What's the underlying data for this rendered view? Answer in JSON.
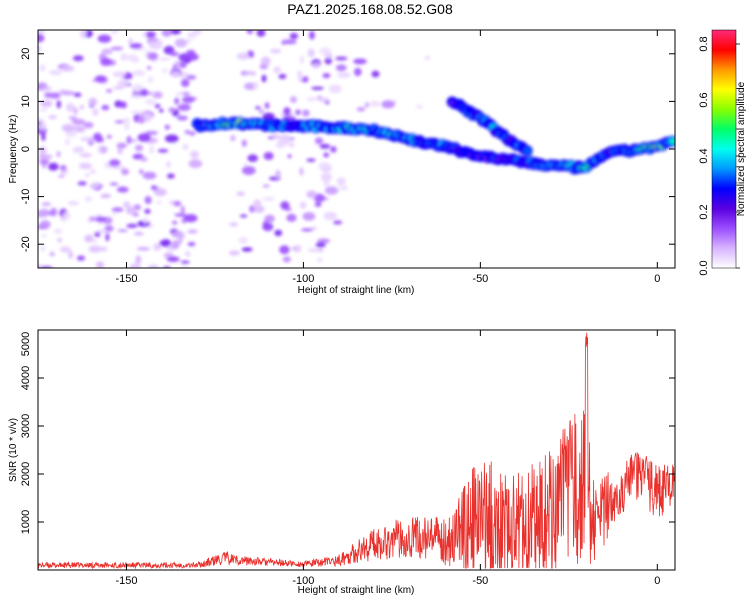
{
  "title": "PAZ1.2025.168.08.52.G08",
  "chart_data": [
    {
      "type": "heatmap",
      "xlabel": "Height of straight line (km)",
      "ylabel": "Frequency (Hz)",
      "xlim": [
        -175,
        5
      ],
      "ylim": [
        -25,
        25
      ],
      "xticks": [
        -150,
        -100,
        -50,
        0
      ],
      "yticks": [
        -20,
        -10,
        0,
        10,
        20
      ],
      "colorbar": {
        "label": "Normalized spectral amplitude",
        "range": [
          0,
          0.85
        ],
        "ticks": [
          "0.0",
          "0.2",
          "0.4",
          "0.6",
          "0.8"
        ],
        "colors": [
          "#ffffff",
          "#d8b4ff",
          "#9b4dff",
          "#5a00e0",
          "#0000ff",
          "#0099ff",
          "#00ffee",
          "#00ff66",
          "#88ff00",
          "#ffff00",
          "#ff9900",
          "#ff0000",
          "#ff2a7a"
        ]
      },
      "ridge": [
        {
          "x": -130,
          "y": 5.0,
          "amp": 0.35
        },
        {
          "x": -120,
          "y": 5.5,
          "amp": 0.7
        },
        {
          "x": -110,
          "y": 5.0,
          "amp": 0.45
        },
        {
          "x": -100,
          "y": 4.8,
          "amp": 0.45
        },
        {
          "x": -90,
          "y": 4.5,
          "amp": 0.55
        },
        {
          "x": -80,
          "y": 4.0,
          "amp": 0.55
        },
        {
          "x": -70,
          "y": 2.0,
          "amp": 0.5
        },
        {
          "x": -60,
          "y": 0.5,
          "amp": 0.45
        },
        {
          "x": -50,
          "y": -1.5,
          "amp": 0.35
        },
        {
          "x": -40,
          "y": -2.5,
          "amp": 0.4
        },
        {
          "x": -30,
          "y": -3.5,
          "amp": 0.45
        },
        {
          "x": -20,
          "y": -4.0,
          "amp": 0.6
        },
        {
          "x": -15,
          "y": -1.0,
          "amp": 0.4
        },
        {
          "x": -10,
          "y": -0.5,
          "amp": 0.45
        },
        {
          "x": -5,
          "y": 0.0,
          "amp": 0.55
        },
        {
          "x": 0,
          "y": 0.5,
          "amp": 0.7
        },
        {
          "x": 5,
          "y": 1.5,
          "amp": 0.5
        }
      ],
      "ridge_branch": [
        {
          "x": -58,
          "y": 10.0,
          "amp": 0.3
        },
        {
          "x": -50,
          "y": 6.5,
          "amp": 0.45
        },
        {
          "x": -42,
          "y": 2.0,
          "amp": 0.45
        },
        {
          "x": -36,
          "y": -0.5,
          "amp": 0.4
        }
      ],
      "noise_regions": [
        {
          "x_range": [
            -175,
            -130
          ],
          "y_range": [
            -25,
            25
          ],
          "density": 0.55
        },
        {
          "x_range": [
            -120,
            -88
          ],
          "y_range": [
            -25,
            25
          ],
          "density": 0.35
        },
        {
          "x_range": [
            -88,
            -60
          ],
          "y_range": [
            8,
            25
          ],
          "density": 0.1
        }
      ]
    },
    {
      "type": "line",
      "xlabel": "Height of straight line (km)",
      "ylabel": "SNR (10 * v/v)",
      "xlim": [
        -175,
        5
      ],
      "ylim": [
        0,
        5000
      ],
      "xticks": [
        -150,
        -100,
        -50,
        0
      ],
      "yticks": [
        1000,
        2000,
        3000,
        4000,
        5000
      ],
      "color": "#e8302c",
      "envelope": [
        {
          "x": -175,
          "y": 100,
          "spread": 60
        },
        {
          "x": -130,
          "y": 100,
          "spread": 60
        },
        {
          "x": -122,
          "y": 250,
          "spread": 150
        },
        {
          "x": -118,
          "y": 200,
          "spread": 100
        },
        {
          "x": -100,
          "y": 120,
          "spread": 60
        },
        {
          "x": -90,
          "y": 200,
          "spread": 120
        },
        {
          "x": -80,
          "y": 550,
          "spread": 350
        },
        {
          "x": -70,
          "y": 700,
          "spread": 450
        },
        {
          "x": -60,
          "y": 600,
          "spread": 500
        },
        {
          "x": -50,
          "y": 1100,
          "spread": 1300
        },
        {
          "x": -40,
          "y": 900,
          "spread": 1100
        },
        {
          "x": -30,
          "y": 1200,
          "spread": 1400
        },
        {
          "x": -21,
          "y": 1800,
          "spread": 1700
        },
        {
          "x": -17,
          "y": 900,
          "spread": 900
        },
        {
          "x": -12,
          "y": 1600,
          "spread": 600
        },
        {
          "x": -5,
          "y": 2000,
          "spread": 500
        },
        {
          "x": 0,
          "y": 1600,
          "spread": 600
        },
        {
          "x": 5,
          "y": 1800,
          "spread": 400
        }
      ],
      "peak": {
        "x": -20,
        "y": 5000
      }
    }
  ]
}
